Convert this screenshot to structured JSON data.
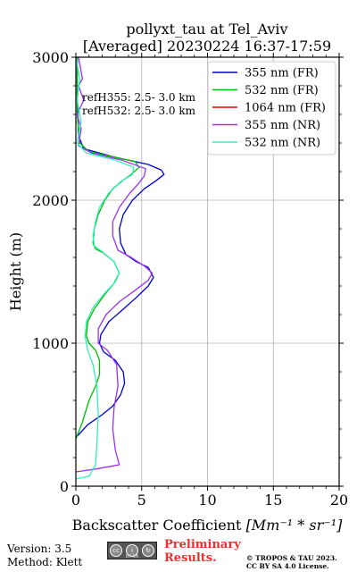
{
  "chart_data": {
    "type": "line",
    "title": "pollyxt_tau at Tel_Aviv",
    "subtitle": "[Averaged] 20230224 16:37-17:59",
    "xlabel": "Backscatter Coefficient",
    "xlabel_math": "[Mm⁻¹ * sr⁻¹]",
    "ylabel": "Height (m)",
    "xlim": [
      0,
      20
    ],
    "ylim": [
      0,
      3000
    ],
    "xticks": [
      "0",
      "5",
      "10",
      "15",
      "20"
    ],
    "yticks": [
      "0",
      "1000",
      "2000",
      "3000"
    ],
    "grid": true,
    "legend_position": "top-right",
    "annotations": [
      "refH355:  2.5- 3.0 km",
      "refH532:  2.5- 3.0 km"
    ],
    "series": [
      {
        "name": "355 nm (FR)",
        "color": "#0000cc",
        "x": [
          0.1,
          0.9,
          2.0,
          2.8,
          3.4,
          3.7,
          3.6,
          3.0,
          2.1,
          1.8,
          1.9,
          2.5,
          3.5,
          4.6,
          5.5,
          5.9,
          5.5,
          4.6,
          3.8,
          3.4,
          3.3,
          3.6,
          4.3,
          5.2,
          6.0,
          6.7,
          6.5,
          5.5,
          3.0,
          0.6,
          0.2,
          0.1,
          0.1
        ],
        "y": [
          350,
          430,
          500,
          560,
          640,
          720,
          800,
          880,
          940,
          1000,
          1060,
          1150,
          1230,
          1320,
          1400,
          1460,
          1530,
          1570,
          1620,
          1700,
          1800,
          1900,
          2000,
          2080,
          2130,
          2180,
          2210,
          2250,
          2300,
          2360,
          2450,
          2700,
          3000
        ]
      },
      {
        "name": "532 nm (FR)",
        "color": "#00bb00",
        "x": [
          0.0,
          0.5,
          1.0,
          1.5,
          1.8,
          1.8,
          1.5,
          1.0,
          0.8,
          0.9,
          1.4,
          2.1,
          2.9,
          3.3,
          2.9,
          2.1,
          1.5,
          1.3,
          1.4,
          1.7,
          2.2,
          2.8,
          3.6,
          4.2,
          4.8,
          4.5,
          3.0,
          1.0,
          0.3,
          0.1,
          0.1
        ],
        "y": [
          330,
          450,
          600,
          700,
          780,
          880,
          950,
          1000,
          1050,
          1150,
          1240,
          1330,
          1420,
          1490,
          1570,
          1630,
          1660,
          1700,
          1800,
          1900,
          2000,
          2080,
          2140,
          2180,
          2230,
          2270,
          2300,
          2340,
          2400,
          2600,
          3000
        ]
      },
      {
        "name": "1064 nm (FR)",
        "color": "#dd0000",
        "x": [],
        "y": []
      },
      {
        "name": "355 nm (NR)",
        "color": "#9933ee",
        "x": [
          0.0,
          1.5,
          3.3,
          3.0,
          2.8,
          2.9,
          3.2,
          3.1,
          2.4,
          1.7,
          1.7,
          2.3,
          3.3,
          4.5,
          5.5,
          5.8,
          5.2,
          4.2,
          3.2,
          2.8,
          2.8,
          3.3,
          4.1,
          4.8,
          5.2,
          5.3,
          3.5,
          1.2,
          0.2,
          0.4,
          0.1,
          0.6,
          0.2,
          0.5,
          0.3,
          0.2
        ],
        "y": [
          100,
          120,
          150,
          250,
          400,
          550,
          700,
          850,
          950,
          1000,
          1100,
          1200,
          1290,
          1370,
          1440,
          1490,
          1540,
          1600,
          1650,
          1750,
          1850,
          1950,
          2050,
          2120,
          2170,
          2220,
          2280,
          2330,
          2380,
          2500,
          2600,
          2700,
          2800,
          2850,
          2950,
          3000
        ]
      },
      {
        "name": "532 nm (NR)",
        "color": "#33eebb",
        "x": [
          0.0,
          1.0,
          1.5,
          1.6,
          1.7,
          1.6,
          1.3,
          0.9,
          0.7,
          0.8,
          1.3,
          2.1,
          3.0,
          3.3,
          2.9,
          2.0,
          1.4,
          1.3,
          1.5,
          1.8,
          2.5,
          3.4,
          4.3,
          4.4,
          3.0,
          0.8,
          0.1,
          0.4,
          0.1,
          0.3,
          0.0
        ],
        "y": [
          50,
          70,
          150,
          300,
          500,
          700,
          850,
          950,
          1050,
          1150,
          1250,
          1340,
          1430,
          1490,
          1570,
          1640,
          1680,
          1750,
          1850,
          1950,
          2050,
          2130,
          2180,
          2230,
          2280,
          2330,
          2400,
          2550,
          2700,
          2850,
          3000
        ]
      }
    ]
  },
  "footer": {
    "version_line1": "Version: 3.5",
    "version_line2": "Method: Klett",
    "license_badge_text": "BY SA",
    "preliminary_line1": "Preliminary",
    "preliminary_line2": "Results.",
    "copyright_line1": "© TROPOS & TAU 2023.",
    "copyright_line2": "CC BY SA 4.0 License."
  }
}
